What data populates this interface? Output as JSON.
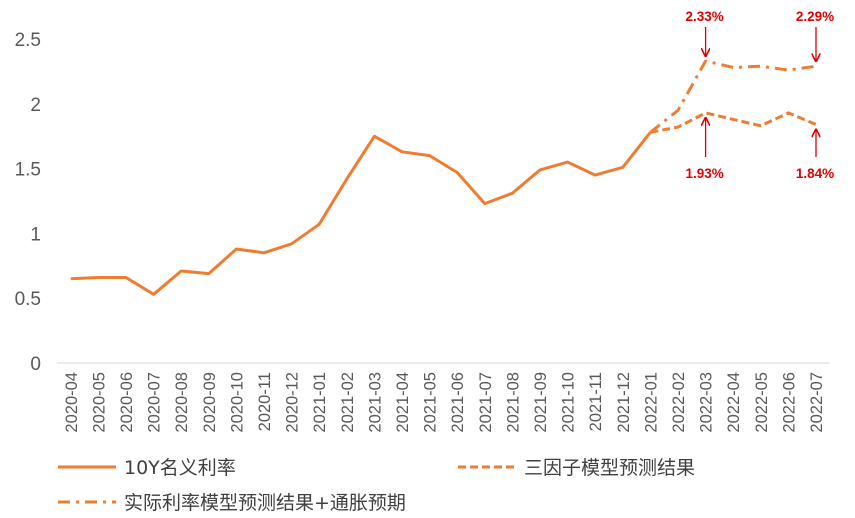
{
  "chart_data": {
    "type": "line",
    "categories": [
      "2020-04",
      "2020-05",
      "2020-06",
      "2020-07",
      "2020-08",
      "2020-09",
      "2020-10",
      "2020-11",
      "2020-12",
      "2021-01",
      "2021-02",
      "2021-03",
      "2021-04",
      "2021-05",
      "2021-06",
      "2021-07",
      "2021-08",
      "2021-09",
      "2021-10",
      "2021-11",
      "2021-12",
      "2022-01",
      "2022-02",
      "2022-03",
      "2022-04",
      "2022-05",
      "2022-06",
      "2022-07"
    ],
    "ylim": [
      0,
      2.5
    ],
    "yticks": [
      0,
      0.5,
      1,
      1.5,
      2,
      2.5
    ],
    "ytick_labels": [
      "0",
      "0.5",
      "1",
      "1.5",
      "2",
      "2.5"
    ],
    "grid": false,
    "legend_position": "bottom",
    "series": [
      {
        "name": "10Y名义利率",
        "style": "solid",
        "color": "#ED7D31",
        "values": [
          0.65,
          0.66,
          0.66,
          0.53,
          0.71,
          0.69,
          0.88,
          0.85,
          0.92,
          1.07,
          1.42,
          1.75,
          1.63,
          1.6,
          1.47,
          1.23,
          1.31,
          1.49,
          1.55,
          1.45,
          1.51,
          1.78,
          null,
          null,
          null,
          null,
          null,
          null
        ]
      },
      {
        "name": "三因子模型预测结果",
        "style": "dash",
        "color": "#ED7D31",
        "values": [
          null,
          null,
          null,
          null,
          null,
          null,
          null,
          null,
          null,
          null,
          null,
          null,
          null,
          null,
          null,
          null,
          null,
          null,
          null,
          null,
          null,
          1.78,
          1.82,
          1.93,
          1.88,
          1.83,
          1.93,
          1.84
        ]
      },
      {
        "name": "实际利率模型预测结果+通胀预期",
        "style": "dashdot",
        "color": "#ED7D31",
        "values": [
          null,
          null,
          null,
          null,
          null,
          null,
          null,
          null,
          null,
          null,
          null,
          null,
          null,
          null,
          null,
          null,
          null,
          null,
          null,
          null,
          null,
          1.78,
          1.95,
          2.33,
          2.28,
          2.29,
          2.26,
          2.29
        ]
      }
    ],
    "annotations": [
      {
        "text": "2.33%",
        "category_index": 23,
        "value": 2.33,
        "placement": "above"
      },
      {
        "text": "2.29%",
        "category_index": 27,
        "value": 2.29,
        "placement": "above"
      },
      {
        "text": "1.93%",
        "category_index": 23,
        "value": 1.93,
        "placement": "below"
      },
      {
        "text": "1.84%",
        "category_index": 27,
        "value": 1.84,
        "placement": "below"
      }
    ],
    "annotation_color": "#E00000"
  }
}
